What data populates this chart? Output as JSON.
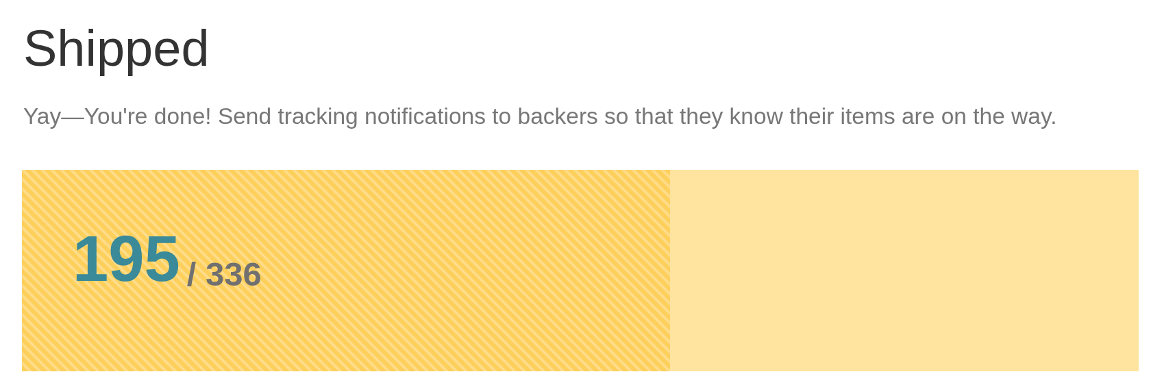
{
  "chart_data": {
    "type": "bar",
    "title": "Shipped",
    "subtitle": "Yay—You're done! Send tracking notifications to backers so that they know their items are on the way.",
    "orientation": "horizontal",
    "stacked": true,
    "categories": [
      null
    ],
    "series": [
      {
        "color": "#fdcf5b",
        "values": [
          195
        ],
        "value_labels": [
          "195"
        ]
      },
      {
        "color": "#fee49f",
        "values": [
          141
        ]
      }
    ],
    "totals": [
      "/ 336"
    ],
    "tick_labels": false,
    "grid": false
  }
}
